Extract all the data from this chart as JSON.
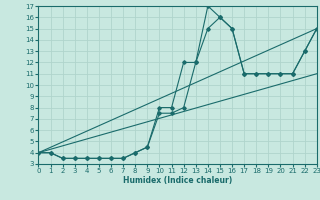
{
  "xlabel": "Humidex (Indice chaleur)",
  "bg_color": "#c8e8e0",
  "grid_color": "#b0d4cc",
  "line_color": "#1a6b6b",
  "xlim": [
    0,
    23
  ],
  "ylim": [
    3,
    17
  ],
  "xticks": [
    0,
    1,
    2,
    3,
    4,
    5,
    6,
    7,
    8,
    9,
    10,
    11,
    12,
    13,
    14,
    15,
    16,
    17,
    18,
    19,
    20,
    21,
    22,
    23
  ],
  "yticks": [
    3,
    4,
    5,
    6,
    7,
    8,
    9,
    10,
    11,
    12,
    13,
    14,
    15,
    16,
    17
  ],
  "series": [
    {
      "x": [
        0,
        1,
        2,
        3,
        4,
        5,
        6,
        7,
        8,
        9,
        10,
        11,
        12,
        13,
        14,
        15,
        16,
        17,
        18,
        19,
        20,
        21,
        22,
        23
      ],
      "y": [
        4,
        4,
        3.5,
        3.5,
        3.5,
        3.5,
        3.5,
        3.5,
        4,
        4.5,
        8,
        8,
        12,
        12,
        17,
        16,
        15,
        11,
        11,
        11,
        11,
        11,
        13,
        15
      ]
    },
    {
      "x": [
        0,
        1,
        2,
        3,
        4,
        5,
        6,
        7,
        8,
        9,
        10,
        11,
        12,
        13,
        14,
        15,
        16,
        17,
        18,
        19,
        20,
        21,
        22,
        23
      ],
      "y": [
        4,
        4,
        3.5,
        3.5,
        3.5,
        3.5,
        3.5,
        3.5,
        4,
        4.5,
        7.5,
        7.5,
        8,
        12,
        15,
        16,
        15,
        11,
        11,
        11,
        11,
        11,
        13,
        15
      ]
    },
    {
      "x": [
        0,
        23
      ],
      "y": [
        4,
        15
      ]
    },
    {
      "x": [
        0,
        23
      ],
      "y": [
        4,
        11
      ]
    }
  ]
}
